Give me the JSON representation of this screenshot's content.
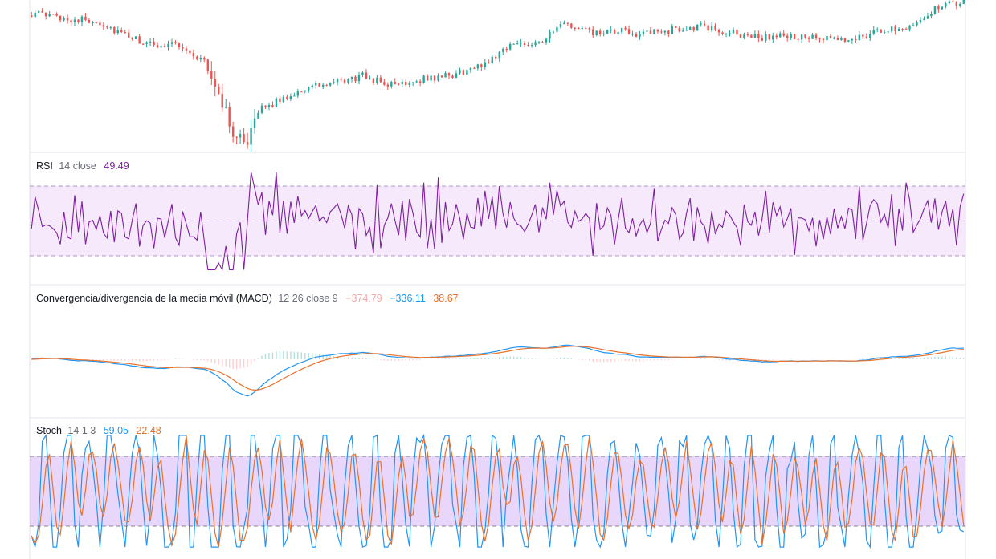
{
  "colors": {
    "up": "#26a69a",
    "down": "#ef5350",
    "rsi_line": "#7e1fa0",
    "rsi_band": "rgba(190,120,230,0.16)",
    "macd_line": "#2196f3",
    "signal_line": "#e8722c",
    "hist_pos": "#b2dfdb",
    "hist_neg": "#ffcdd2",
    "stoch_k": "#2196f3",
    "stoch_d": "#e8722c",
    "stoch_band": "rgba(190,140,240,0.35)",
    "divider": "#e0e3eb",
    "text": "#131722"
  },
  "panes": {
    "rsi": {
      "name": "RSI",
      "params": "14 close",
      "value": "49.49",
      "value_color": "#7e1fa0"
    },
    "macd": {
      "name": "Convergencia/divergencia de la media móvil (MACD)",
      "params": "12 26 close 9",
      "hist_value": "−374.79",
      "hist_color": "#f4a7a7",
      "macd_value": "−336.11",
      "macd_color": "#2196f3",
      "signal_value": "38.67",
      "signal_color": "#e8722c"
    },
    "stoch": {
      "name": "Stoch",
      "params": "14 1 3",
      "k_value": "59.05",
      "k_color": "#2196f3",
      "d_value": "22.48",
      "d_color": "#e8722c"
    }
  },
  "chart_data": [
    {
      "type": "candlestick",
      "pane": "price",
      "bars": 260,
      "close_shape": [
        [
          0,
          0.92
        ],
        [
          12,
          0.88
        ],
        [
          18,
          0.87
        ],
        [
          26,
          0.77
        ],
        [
          34,
          0.7
        ],
        [
          40,
          0.73
        ],
        [
          44,
          0.65
        ],
        [
          48,
          0.6
        ],
        [
          52,
          0.38
        ],
        [
          56,
          0.12
        ],
        [
          60,
          0.08
        ],
        [
          64,
          0.28
        ],
        [
          70,
          0.35
        ],
        [
          76,
          0.42
        ],
        [
          84,
          0.45
        ],
        [
          92,
          0.5
        ],
        [
          100,
          0.44
        ],
        [
          108,
          0.48
        ],
        [
          116,
          0.5
        ],
        [
          124,
          0.56
        ],
        [
          128,
          0.62
        ],
        [
          132,
          0.7
        ],
        [
          136,
          0.72
        ],
        [
          142,
          0.74
        ],
        [
          148,
          0.85
        ],
        [
          154,
          0.8
        ],
        [
          158,
          0.78
        ],
        [
          164,
          0.8
        ],
        [
          170,
          0.78
        ],
        [
          178,
          0.81
        ],
        [
          186,
          0.83
        ],
        [
          194,
          0.79
        ],
        [
          202,
          0.76
        ],
        [
          210,
          0.77
        ],
        [
          218,
          0.75
        ],
        [
          226,
          0.74
        ],
        [
          234,
          0.79
        ],
        [
          244,
          0.84
        ],
        [
          252,
          0.96
        ],
        [
          259,
          1.0
        ]
      ]
    },
    {
      "type": "line",
      "pane": "rsi",
      "ylim": [
        0,
        100
      ],
      "levels": [
        70,
        50,
        30
      ],
      "last": 49.49
    },
    {
      "type": "line",
      "pane": "macd",
      "series": [
        {
          "name": "MACD",
          "last": -336.11
        },
        {
          "name": "Signal",
          "last": 38.67
        }
      ],
      "histogram_last": -374.79,
      "trough_bar": 56
    },
    {
      "type": "line",
      "pane": "stoch",
      "ylim": [
        0,
        100
      ],
      "levels": [
        80,
        20
      ],
      "series": [
        {
          "name": "%K",
          "last": 59.05
        },
        {
          "name": "%D",
          "last": 22.48
        }
      ]
    }
  ]
}
